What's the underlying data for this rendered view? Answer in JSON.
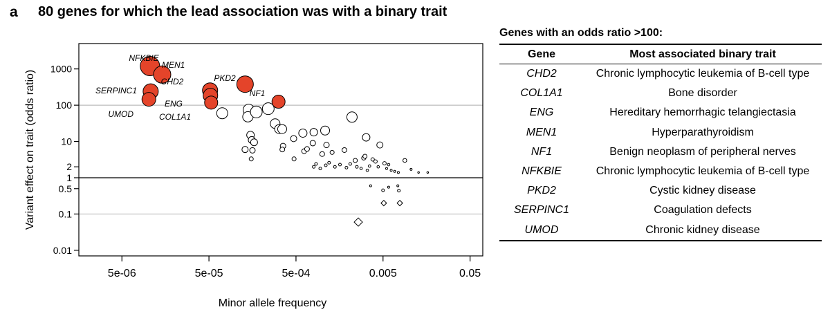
{
  "panel_label": "a",
  "title": "80 genes for which the lead association was with a binary trait",
  "chart_data": {
    "type": "scatter",
    "title": "80 genes for which the lead association was with a binary trait",
    "xlabel": "Minor allele frequency",
    "ylabel": "Variant effect on trait (odds ratio)",
    "x_scale": "log",
    "y_scale": "log",
    "xlim": [
      1.6e-06,
      0.07
    ],
    "ylim": [
      0.007,
      5000
    ],
    "x_ticks": [
      {
        "value": 5e-06,
        "label": "5e-06"
      },
      {
        "value": 5e-05,
        "label": "5e-05"
      },
      {
        "value": 0.0005,
        "label": "5e-04"
      },
      {
        "value": 0.005,
        "label": "0.005"
      },
      {
        "value": 0.05,
        "label": "0.05"
      }
    ],
    "y_ticks": [
      {
        "value": 0.01,
        "label": "0.01"
      },
      {
        "value": 0.1,
        "label": "0.1"
      },
      {
        "value": 0.5,
        "label": "0.5"
      },
      {
        "value": 1,
        "label": "1"
      },
      {
        "value": 2,
        "label": "2"
      },
      {
        "value": 10,
        "label": "10"
      },
      {
        "value": 100,
        "label": "100"
      },
      {
        "value": 1000,
        "label": "1000"
      }
    ],
    "gridlines_y": [
      0.1,
      100
    ],
    "reference_line_y": 1,
    "highlight_color": "#e4442a",
    "labeled_points": [
      {
        "gene": "NFKBIE",
        "x": 1.05e-05,
        "y": 1200
      },
      {
        "gene": "MEN1",
        "x": 1.45e-05,
        "y": 700
      },
      {
        "gene": "SERPINC1",
        "x": 1.07e-05,
        "y": 240
      },
      {
        "gene": "UMOD",
        "x": 1.02e-05,
        "y": 145
      },
      {
        "gene": "CHD2",
        "x": 5.15e-05,
        "y": 255
      },
      {
        "gene": "ENG",
        "x": 5.2e-05,
        "y": 185
      },
      {
        "gene": "COL1A1",
        "x": 5.3e-05,
        "y": 118
      },
      {
        "gene": "PKD2",
        "x": 0.00013,
        "y": 380
      },
      {
        "gene": "NF1",
        "x": 0.000315,
        "y": 125
      }
    ],
    "other_points": [
      {
        "x": 7.1e-05,
        "y": 60,
        "size": 8
      },
      {
        "x": 0.000143,
        "y": 75,
        "size": 8
      },
      {
        "x": 0.00014,
        "y": 48,
        "size": 7.5
      },
      {
        "x": 0.000175,
        "y": 65,
        "size": 8.5
      },
      {
        "x": 0.00024,
        "y": 80,
        "size": 8.5
      },
      {
        "x": 0.000288,
        "y": 31,
        "size": 7
      },
      {
        "x": 0.00032,
        "y": 22,
        "size": 6.5
      },
      {
        "x": 0.000347,
        "y": 22,
        "size": 6.5
      },
      {
        "x": 0.00015,
        "y": 15,
        "size": 5.5
      },
      {
        "x": 0.000155,
        "y": 11,
        "size": 5
      },
      {
        "x": 0.000165,
        "y": 9.5,
        "size": 5
      },
      {
        "x": 0.00013,
        "y": 6,
        "size": 4.5
      },
      {
        "x": 0.000158,
        "y": 5.7,
        "size": 4
      },
      {
        "x": 0.000153,
        "y": 3.3,
        "size": 3
      },
      {
        "x": 0.000355,
        "y": 7.5,
        "size": 4
      },
      {
        "x": 0.000348,
        "y": 6,
        "size": 3.5
      },
      {
        "x": 0.000475,
        "y": 3.3,
        "size": 3
      },
      {
        "x": 0.0006,
        "y": 17,
        "size": 6
      },
      {
        "x": 0.0008,
        "y": 18,
        "size": 5.5
      },
      {
        "x": 0.00108,
        "y": 20,
        "size": 6.5
      },
      {
        "x": 0.0022,
        "y": 47,
        "size": 7.5
      },
      {
        "x": 0.0032,
        "y": 13,
        "size": 5.5
      },
      {
        "x": 0.00047,
        "y": 12,
        "size": 4.5
      },
      {
        "x": 0.00078,
        "y": 9,
        "size": 4
      },
      {
        "x": 0.00112,
        "y": 8,
        "size": 4
      },
      {
        "x": 0.00062,
        "y": 5.4,
        "size": 3.5
      },
      {
        "x": 0.00067,
        "y": 6.2,
        "size": 3.5
      },
      {
        "x": 0.001,
        "y": 4.5,
        "size": 3.5
      },
      {
        "x": 0.0013,
        "y": 5,
        "size": 3
      },
      {
        "x": 0.0018,
        "y": 5.8,
        "size": 3.5
      },
      {
        "x": 0.0024,
        "y": 3,
        "size": 3
      },
      {
        "x": 0.003,
        "y": 3.5,
        "size": 3
      },
      {
        "x": 0.0046,
        "y": 8,
        "size": 4.5
      },
      {
        "x": 0.0031,
        "y": 3.9,
        "size": 3
      },
      {
        "x": 0.0038,
        "y": 3.2,
        "size": 2.5
      },
      {
        "x": 0.0052,
        "y": 2.5,
        "size": 2.5
      },
      {
        "x": 0.0041,
        "y": 2.8,
        "size": 2.5
      },
      {
        "x": 0.0089,
        "y": 3,
        "size": 2.8
      },
      {
        "x": 0.0008,
        "y": 2,
        "size": 2
      },
      {
        "x": 0.00085,
        "y": 2.4,
        "size": 2
      },
      {
        "x": 0.00095,
        "y": 1.8,
        "size": 2
      },
      {
        "x": 0.0011,
        "y": 2.2,
        "size": 2
      },
      {
        "x": 0.0012,
        "y": 2.6,
        "size": 2
      },
      {
        "x": 0.0014,
        "y": 2,
        "size": 2
      },
      {
        "x": 0.0016,
        "y": 2.3,
        "size": 2
      },
      {
        "x": 0.0019,
        "y": 1.9,
        "size": 2
      },
      {
        "x": 0.0021,
        "y": 2.4,
        "size": 2
      },
      {
        "x": 0.0025,
        "y": 2,
        "size": 2
      },
      {
        "x": 0.0028,
        "y": 1.8,
        "size": 1.8
      },
      {
        "x": 0.0033,
        "y": 1.6,
        "size": 1.8
      },
      {
        "x": 0.0035,
        "y": 2.1,
        "size": 1.8
      },
      {
        "x": 0.0044,
        "y": 2,
        "size": 1.8
      },
      {
        "x": 0.0055,
        "y": 1.8,
        "size": 1.5
      },
      {
        "x": 0.0062,
        "y": 1.6,
        "size": 1.5
      },
      {
        "x": 0.0068,
        "y": 1.5,
        "size": 1.5
      },
      {
        "x": 0.0075,
        "y": 1.4,
        "size": 1.5
      },
      {
        "x": 0.0105,
        "y": 1.7,
        "size": 1.5
      },
      {
        "x": 0.0128,
        "y": 1.4,
        "size": 1.2
      },
      {
        "x": 0.0163,
        "y": 1.4,
        "size": 1.2
      },
      {
        "x": 0.0058,
        "y": 2.3,
        "size": 1.8
      },
      {
        "x": 0.0036,
        "y": 0.6,
        "size": 1.5
      },
      {
        "x": 0.0058,
        "y": 0.55,
        "size": 1.5
      },
      {
        "x": 0.0074,
        "y": 0.6,
        "size": 1.5
      },
      {
        "x": 0.005,
        "y": 0.45,
        "size": 2
      },
      {
        "x": 0.0076,
        "y": 0.44,
        "size": 2
      }
    ],
    "diamond_points": [
      {
        "x": 0.0026,
        "y": 0.06,
        "size": 6
      },
      {
        "x": 0.0051,
        "y": 0.2,
        "size": 4
      },
      {
        "x": 0.0078,
        "y": 0.2,
        "size": 4
      }
    ]
  },
  "table": {
    "title": "Genes with an odds ratio >100:",
    "headers": [
      "Gene",
      "Most associated binary trait"
    ],
    "rows": [
      {
        "gene": "CHD2",
        "trait": "Chronic lymphocytic leukemia of B-cell type"
      },
      {
        "gene": "COL1A1",
        "trait": "Bone disorder"
      },
      {
        "gene": "ENG",
        "trait": "Hereditary hemorrhagic telangiectasia"
      },
      {
        "gene": "MEN1",
        "trait": "Hyperparathyroidism"
      },
      {
        "gene": "NF1",
        "trait": "Benign neoplasm of peripheral nerves"
      },
      {
        "gene": "NFKBIE",
        "trait": "Chronic lymphocytic leukemia of B-cell type"
      },
      {
        "gene": "PKD2",
        "trait": "Cystic kidney disease"
      },
      {
        "gene": "SERPINC1",
        "trait": "Coagulation defects"
      },
      {
        "gene": "UMOD",
        "trait": "Chronic kidney disease"
      }
    ]
  }
}
